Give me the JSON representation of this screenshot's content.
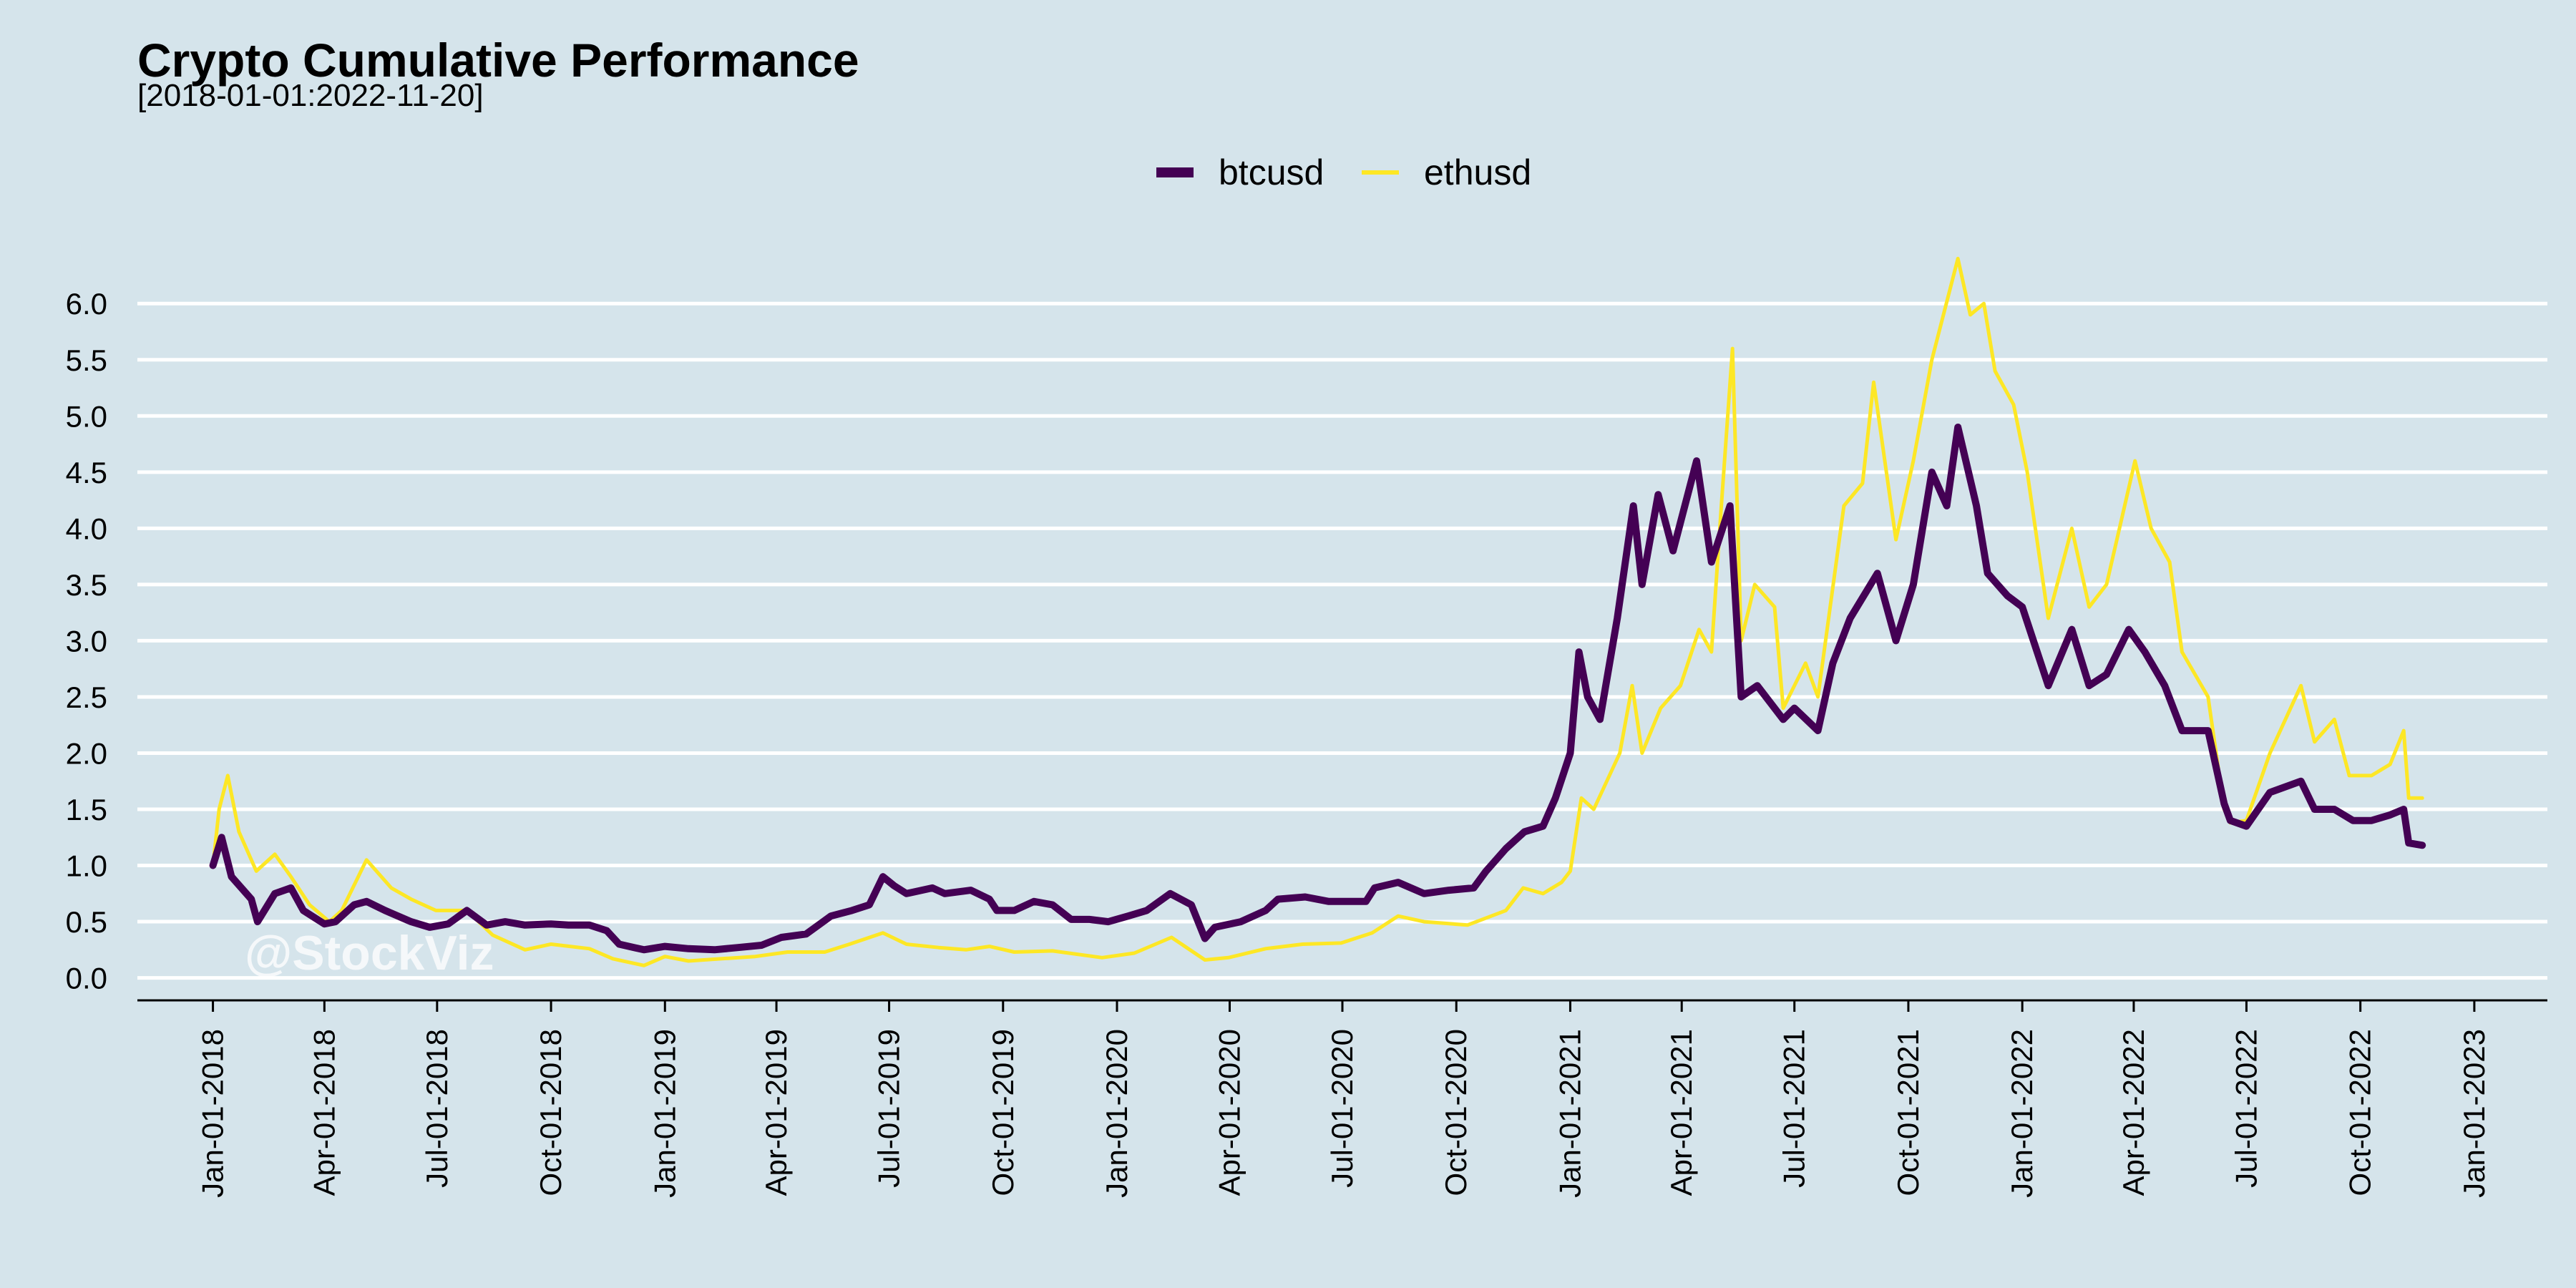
{
  "chart_data": {
    "type": "line",
    "title": "Crypto Cumulative Performance",
    "subtitle": "[2018-01-01:2022-11-20]",
    "watermark": "@StockViz",
    "legend_position": "top",
    "grid": "horizontal",
    "xlim": [
      "2017-11-01",
      "2023-03-01"
    ],
    "ylim": [
      -0.2,
      6.6
    ],
    "y_ticks": [
      0.0,
      0.5,
      1.0,
      1.5,
      2.0,
      2.5,
      3.0,
      3.5,
      4.0,
      4.5,
      5.0,
      5.5,
      6.0
    ],
    "y_tick_labels": [
      "0.0",
      "0.5",
      "1.0",
      "1.5",
      "2.0",
      "2.5",
      "3.0",
      "3.5",
      "4.0",
      "4.5",
      "5.0",
      "5.5",
      "6.0"
    ],
    "x_ticks": [
      "2018-01-01",
      "2018-04-01",
      "2018-07-01",
      "2018-10-01",
      "2019-01-01",
      "2019-04-01",
      "2019-07-01",
      "2019-10-01",
      "2020-01-01",
      "2020-04-01",
      "2020-07-01",
      "2020-10-01",
      "2021-01-01",
      "2021-04-01",
      "2021-07-01",
      "2021-10-01",
      "2022-01-01",
      "2022-04-01",
      "2022-07-01",
      "2022-10-01",
      "2023-01-01"
    ],
    "x_tick_labels": [
      "Jan-01-2018",
      "Apr-01-2018",
      "Jul-01-2018",
      "Oct-01-2018",
      "Jan-01-2019",
      "Apr-01-2019",
      "Jul-01-2019",
      "Oct-01-2019",
      "Jan-01-2020",
      "Apr-01-2020",
      "Jul-01-2020",
      "Oct-01-2020",
      "Jan-01-2021",
      "Apr-01-2021",
      "Jul-01-2021",
      "Oct-01-2021",
      "Jan-01-2022",
      "Apr-01-2022",
      "Jul-01-2022",
      "Oct-01-2022",
      "Jan-01-2023"
    ],
    "series": [
      {
        "name": "btcusd",
        "color": "#440154",
        "points": [
          [
            "2018-01-01",
            1.0
          ],
          [
            "2018-01-08",
            1.25
          ],
          [
            "2018-01-16",
            0.9
          ],
          [
            "2018-02-01",
            0.7
          ],
          [
            "2018-02-06",
            0.5
          ],
          [
            "2018-02-20",
            0.75
          ],
          [
            "2018-03-05",
            0.8
          ],
          [
            "2018-03-15",
            0.6
          ],
          [
            "2018-04-01",
            0.48
          ],
          [
            "2018-04-10",
            0.5
          ],
          [
            "2018-04-25",
            0.65
          ],
          [
            "2018-05-05",
            0.68
          ],
          [
            "2018-05-20",
            0.6
          ],
          [
            "2018-06-10",
            0.5
          ],
          [
            "2018-06-25",
            0.45
          ],
          [
            "2018-07-10",
            0.48
          ],
          [
            "2018-07-25",
            0.6
          ],
          [
            "2018-08-10",
            0.47
          ],
          [
            "2018-08-25",
            0.5
          ],
          [
            "2018-09-10",
            0.47
          ],
          [
            "2018-10-01",
            0.48
          ],
          [
            "2018-10-15",
            0.47
          ],
          [
            "2018-11-01",
            0.47
          ],
          [
            "2018-11-15",
            0.42
          ],
          [
            "2018-11-25",
            0.3
          ],
          [
            "2018-12-15",
            0.25
          ],
          [
            "2019-01-01",
            0.28
          ],
          [
            "2019-01-20",
            0.26
          ],
          [
            "2019-02-10",
            0.25
          ],
          [
            "2019-03-01",
            0.27
          ],
          [
            "2019-03-20",
            0.29
          ],
          [
            "2019-04-05",
            0.36
          ],
          [
            "2019-04-25",
            0.39
          ],
          [
            "2019-05-15",
            0.55
          ],
          [
            "2019-06-01",
            0.6
          ],
          [
            "2019-06-15",
            0.65
          ],
          [
            "2019-06-26",
            0.9
          ],
          [
            "2019-07-05",
            0.82
          ],
          [
            "2019-07-15",
            0.75
          ],
          [
            "2019-08-05",
            0.8
          ],
          [
            "2019-08-15",
            0.75
          ],
          [
            "2019-09-05",
            0.78
          ],
          [
            "2019-09-20",
            0.7
          ],
          [
            "2019-09-26",
            0.6
          ],
          [
            "2019-10-10",
            0.6
          ],
          [
            "2019-10-26",
            0.68
          ],
          [
            "2019-11-10",
            0.65
          ],
          [
            "2019-11-25",
            0.52
          ],
          [
            "2019-12-10",
            0.52
          ],
          [
            "2019-12-25",
            0.5
          ],
          [
            "2020-01-10",
            0.55
          ],
          [
            "2020-01-25",
            0.6
          ],
          [
            "2020-02-13",
            0.75
          ],
          [
            "2020-03-01",
            0.65
          ],
          [
            "2020-03-12",
            0.35
          ],
          [
            "2020-03-20",
            0.45
          ],
          [
            "2020-04-10",
            0.5
          ],
          [
            "2020-04-30",
            0.6
          ],
          [
            "2020-05-10",
            0.7
          ],
          [
            "2020-06-01",
            0.72
          ],
          [
            "2020-06-20",
            0.68
          ],
          [
            "2020-07-20",
            0.68
          ],
          [
            "2020-07-27",
            0.8
          ],
          [
            "2020-08-15",
            0.85
          ],
          [
            "2020-09-05",
            0.75
          ],
          [
            "2020-09-25",
            0.78
          ],
          [
            "2020-10-15",
            0.8
          ],
          [
            "2020-10-25",
            0.95
          ],
          [
            "2020-11-10",
            1.15
          ],
          [
            "2020-11-25",
            1.3
          ],
          [
            "2020-12-10",
            1.35
          ],
          [
            "2020-12-20",
            1.6
          ],
          [
            "2021-01-01",
            2.0
          ],
          [
            "2021-01-08",
            2.9
          ],
          [
            "2021-01-15",
            2.5
          ],
          [
            "2021-01-25",
            2.3
          ],
          [
            "2021-02-08",
            3.2
          ],
          [
            "2021-02-21",
            4.2
          ],
          [
            "2021-02-28",
            3.5
          ],
          [
            "2021-03-13",
            4.3
          ],
          [
            "2021-03-25",
            3.8
          ],
          [
            "2021-04-13",
            4.6
          ],
          [
            "2021-04-25",
            3.7
          ],
          [
            "2021-05-10",
            4.2
          ],
          [
            "2021-05-19",
            2.5
          ],
          [
            "2021-06-01",
            2.6
          ],
          [
            "2021-06-22",
            2.3
          ],
          [
            "2021-07-01",
            2.4
          ],
          [
            "2021-07-20",
            2.2
          ],
          [
            "2021-08-01",
            2.8
          ],
          [
            "2021-08-15",
            3.2
          ],
          [
            "2021-09-06",
            3.6
          ],
          [
            "2021-09-21",
            3.0
          ],
          [
            "2021-10-05",
            3.5
          ],
          [
            "2021-10-20",
            4.5
          ],
          [
            "2021-11-01",
            4.2
          ],
          [
            "2021-11-10",
            4.9
          ],
          [
            "2021-11-25",
            4.2
          ],
          [
            "2021-12-04",
            3.6
          ],
          [
            "2021-12-20",
            3.4
          ],
          [
            "2022-01-01",
            3.3
          ],
          [
            "2022-01-22",
            2.6
          ],
          [
            "2022-02-10",
            3.1
          ],
          [
            "2022-02-24",
            2.6
          ],
          [
            "2022-03-10",
            2.7
          ],
          [
            "2022-03-28",
            3.1
          ],
          [
            "2022-04-10",
            2.9
          ],
          [
            "2022-04-26",
            2.6
          ],
          [
            "2022-05-10",
            2.2
          ],
          [
            "2022-05-31",
            2.2
          ],
          [
            "2022-06-13",
            1.55
          ],
          [
            "2022-06-18",
            1.4
          ],
          [
            "2022-07-01",
            1.35
          ],
          [
            "2022-07-20",
            1.65
          ],
          [
            "2022-08-14",
            1.75
          ],
          [
            "2022-08-25",
            1.5
          ],
          [
            "2022-09-10",
            1.5
          ],
          [
            "2022-09-25",
            1.4
          ],
          [
            "2022-10-10",
            1.4
          ],
          [
            "2022-10-25",
            1.45
          ],
          [
            "2022-11-05",
            1.5
          ],
          [
            "2022-11-09",
            1.2
          ],
          [
            "2022-11-20",
            1.18
          ]
        ]
      },
      {
        "name": "ethusd",
        "color": "#fde725",
        "points": [
          [
            "2018-01-01",
            1.0
          ],
          [
            "2018-01-06",
            1.5
          ],
          [
            "2018-01-13",
            1.8
          ],
          [
            "2018-01-22",
            1.3
          ],
          [
            "2018-02-05",
            0.95
          ],
          [
            "2018-02-20",
            1.1
          ],
          [
            "2018-03-05",
            0.9
          ],
          [
            "2018-03-20",
            0.65
          ],
          [
            "2018-04-05",
            0.5
          ],
          [
            "2018-04-15",
            0.6
          ],
          [
            "2018-05-05",
            1.05
          ],
          [
            "2018-05-25",
            0.8
          ],
          [
            "2018-06-10",
            0.7
          ],
          [
            "2018-06-30",
            0.6
          ],
          [
            "2018-07-25",
            0.6
          ],
          [
            "2018-08-15",
            0.38
          ],
          [
            "2018-09-10",
            0.25
          ],
          [
            "2018-10-01",
            0.3
          ],
          [
            "2018-11-01",
            0.26
          ],
          [
            "2018-11-20",
            0.17
          ],
          [
            "2018-12-15",
            0.11
          ],
          [
            "2019-01-01",
            0.19
          ],
          [
            "2019-01-20",
            0.15
          ],
          [
            "2019-02-15",
            0.17
          ],
          [
            "2019-03-15",
            0.19
          ],
          [
            "2019-04-10",
            0.23
          ],
          [
            "2019-05-10",
            0.23
          ],
          [
            "2019-05-30",
            0.3
          ],
          [
            "2019-06-26",
            0.4
          ],
          [
            "2019-07-15",
            0.3
          ],
          [
            "2019-08-10",
            0.27
          ],
          [
            "2019-09-01",
            0.25
          ],
          [
            "2019-09-20",
            0.28
          ],
          [
            "2019-10-10",
            0.23
          ],
          [
            "2019-11-10",
            0.24
          ],
          [
            "2019-12-20",
            0.18
          ],
          [
            "2020-01-15",
            0.22
          ],
          [
            "2020-02-14",
            0.36
          ],
          [
            "2020-03-12",
            0.16
          ],
          [
            "2020-03-31",
            0.18
          ],
          [
            "2020-04-30",
            0.26
          ],
          [
            "2020-05-30",
            0.3
          ],
          [
            "2020-06-30",
            0.31
          ],
          [
            "2020-07-25",
            0.4
          ],
          [
            "2020-08-15",
            0.55
          ],
          [
            "2020-09-05",
            0.5
          ],
          [
            "2020-10-10",
            0.47
          ],
          [
            "2020-11-10",
            0.6
          ],
          [
            "2020-11-24",
            0.8
          ],
          [
            "2020-12-10",
            0.75
          ],
          [
            "2020-12-25",
            0.85
          ],
          [
            "2021-01-01",
            0.95
          ],
          [
            "2021-01-10",
            1.6
          ],
          [
            "2021-01-20",
            1.5
          ],
          [
            "2021-02-10",
            2.0
          ],
          [
            "2021-02-20",
            2.6
          ],
          [
            "2021-02-28",
            2.0
          ],
          [
            "2021-03-15",
            2.4
          ],
          [
            "2021-03-31",
            2.6
          ],
          [
            "2021-04-15",
            3.1
          ],
          [
            "2021-04-25",
            2.9
          ],
          [
            "2021-05-03",
            4.2
          ],
          [
            "2021-05-12",
            5.6
          ],
          [
            "2021-05-19",
            3.0
          ],
          [
            "2021-05-30",
            3.5
          ],
          [
            "2021-06-15",
            3.3
          ],
          [
            "2021-06-22",
            2.4
          ],
          [
            "2021-07-10",
            2.8
          ],
          [
            "2021-07-20",
            2.5
          ],
          [
            "2021-08-10",
            4.2
          ],
          [
            "2021-08-25",
            4.4
          ],
          [
            "2021-09-03",
            5.3
          ],
          [
            "2021-09-21",
            3.9
          ],
          [
            "2021-10-05",
            4.6
          ],
          [
            "2021-10-20",
            5.5
          ],
          [
            "2021-11-10",
            6.4
          ],
          [
            "2021-11-20",
            5.9
          ],
          [
            "2021-12-01",
            6.0
          ],
          [
            "2021-12-10",
            5.4
          ],
          [
            "2021-12-25",
            5.1
          ],
          [
            "2022-01-05",
            4.5
          ],
          [
            "2022-01-22",
            3.2
          ],
          [
            "2022-02-10",
            4.0
          ],
          [
            "2022-02-24",
            3.3
          ],
          [
            "2022-03-10",
            3.5
          ],
          [
            "2022-04-02",
            4.6
          ],
          [
            "2022-04-15",
            4.0
          ],
          [
            "2022-04-30",
            3.7
          ],
          [
            "2022-05-10",
            2.9
          ],
          [
            "2022-05-31",
            2.5
          ],
          [
            "2022-06-13",
            1.5
          ],
          [
            "2022-06-18",
            1.38
          ],
          [
            "2022-07-01",
            1.4
          ],
          [
            "2022-07-20",
            2.0
          ],
          [
            "2022-08-14",
            2.6
          ],
          [
            "2022-08-25",
            2.1
          ],
          [
            "2022-09-10",
            2.3
          ],
          [
            "2022-09-22",
            1.8
          ],
          [
            "2022-10-10",
            1.8
          ],
          [
            "2022-10-25",
            1.9
          ],
          [
            "2022-11-05",
            2.2
          ],
          [
            "2022-11-09",
            1.6
          ],
          [
            "2022-11-20",
            1.6
          ]
        ]
      }
    ]
  }
}
